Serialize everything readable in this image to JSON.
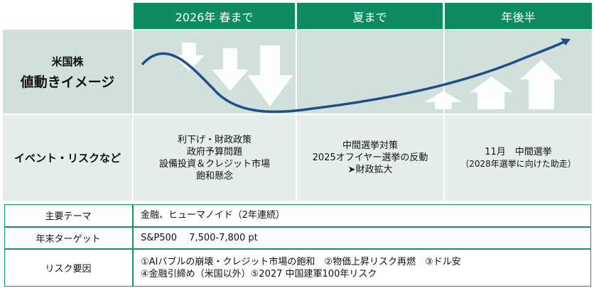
{
  "header": {
    "col1": "2026年 春まで",
    "col2": "夏まで",
    "col3": "年後半"
  },
  "image_row": {
    "label_line1": "米国株",
    "label_line2": "値動きイメージ"
  },
  "events_row": {
    "label": "イベント・リスクなど",
    "col1": [
      "利下げ・財政政策",
      "政府予算問題",
      "設備投資＆クレジット市場",
      "飽和懸念"
    ],
    "col2": [
      "中間選挙対策",
      "2025オフイヤー選挙の反動",
      "➤財政拡大"
    ],
    "col3": [
      "11月　中間選挙",
      "（2028年選挙に向けた助走）"
    ]
  },
  "table": {
    "rows": [
      {
        "label": "主要テーマ",
        "lines": [
          "金融、ヒューマノイド（2年連続）"
        ]
      },
      {
        "label": "年末ターゲット",
        "lines": [
          "S&P500　 7,500-7,800 pt"
        ]
      },
      {
        "label": "リスク要因",
        "lines": [
          "①AIバブルの崩壊・クレジット市場の飽和　②物価上昇リスク再燃　③ドル安",
          "④金融引締め（米国以外）⑤2027 中国建軍100年リスク"
        ]
      }
    ]
  },
  "colors": {
    "header": "#0f8b62",
    "band_top": "#d1e0db",
    "band_mid": "#e5eeeb",
    "curve": "#1f4e8c",
    "arrow_fill": "#ffffff",
    "table_border": "#18925f"
  }
}
